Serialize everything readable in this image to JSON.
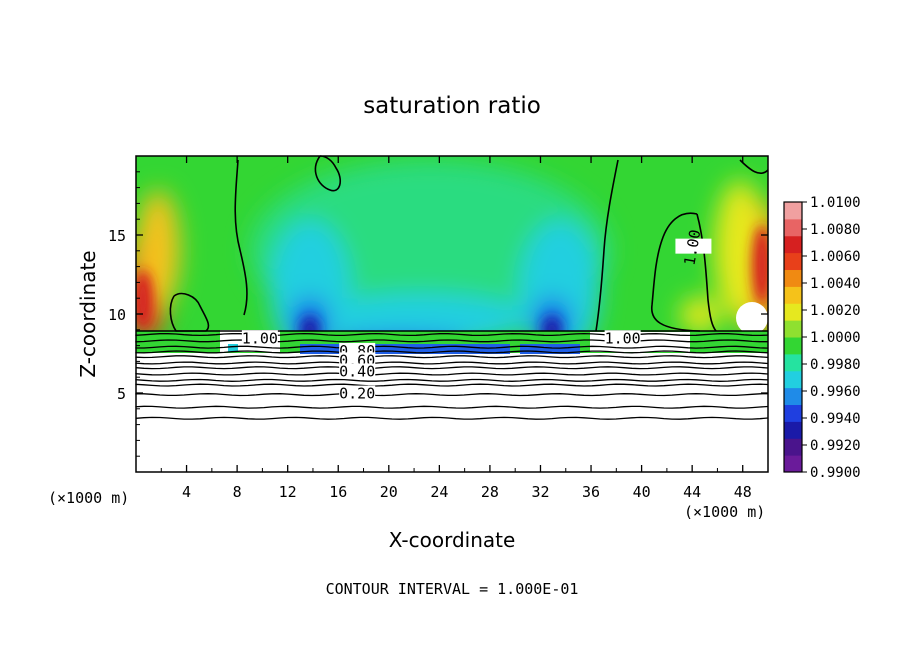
{
  "chart_data": {
    "type": "heatmap",
    "title": "saturation ratio",
    "xlabel": "X-coordinate",
    "ylabel": "Z-coordinate",
    "x_unit_left": "(×1000 m)",
    "x_unit_right": "(×1000 m)",
    "footer": "CONTOUR INTERVAL = 1.000E-01",
    "xlim": [
      0,
      50
    ],
    "ylim": [
      0,
      20
    ],
    "x_ticks": [
      4,
      8,
      12,
      16,
      20,
      24,
      28,
      32,
      36,
      40,
      44,
      48
    ],
    "y_ticks": [
      5,
      10,
      15
    ],
    "colorbar": {
      "min": 0.99,
      "max": 1.01,
      "tick_labels": [
        "1.0100",
        "1.0080",
        "1.0060",
        "1.0040",
        "1.0020",
        "1.0000",
        "0.9980",
        "0.9960",
        "0.9940",
        "0.9920",
        "0.9900"
      ],
      "colors": [
        "#6a1b9a",
        "#4a148c",
        "#1a1aa8",
        "#1f3fe0",
        "#1f8be8",
        "#22cfe0",
        "#25e3a0",
        "#33d633",
        "#8fe030",
        "#e6e81f",
        "#f5c21a",
        "#f08a12",
        "#e8401a",
        "#d62020",
        "#e86464",
        "#f0a0a0"
      ]
    },
    "contour_labels": [
      {
        "text": "1.00",
        "x": 44.1,
        "z": 14.2
      },
      {
        "text": "1.00",
        "x": 9.8,
        "z": 8.4
      },
      {
        "text": "1.00",
        "x": 38.5,
        "z": 8.4
      },
      {
        "text": "0.80",
        "x": 17.5,
        "z": 7.6
      },
      {
        "text": "0.60",
        "x": 17.5,
        "z": 7.0
      },
      {
        "text": "0.40",
        "x": 17.5,
        "z": 6.3
      },
      {
        "text": "0.20",
        "x": 17.5,
        "z": 4.9
      }
    ],
    "inversion_height": 9.0,
    "contour_levels_below": [
      8.7,
      8.3,
      7.9,
      7.6,
      7.3,
      6.9,
      6.6,
      6.2,
      5.8,
      5.5,
      4.9,
      4.1,
      3.4
    ]
  }
}
